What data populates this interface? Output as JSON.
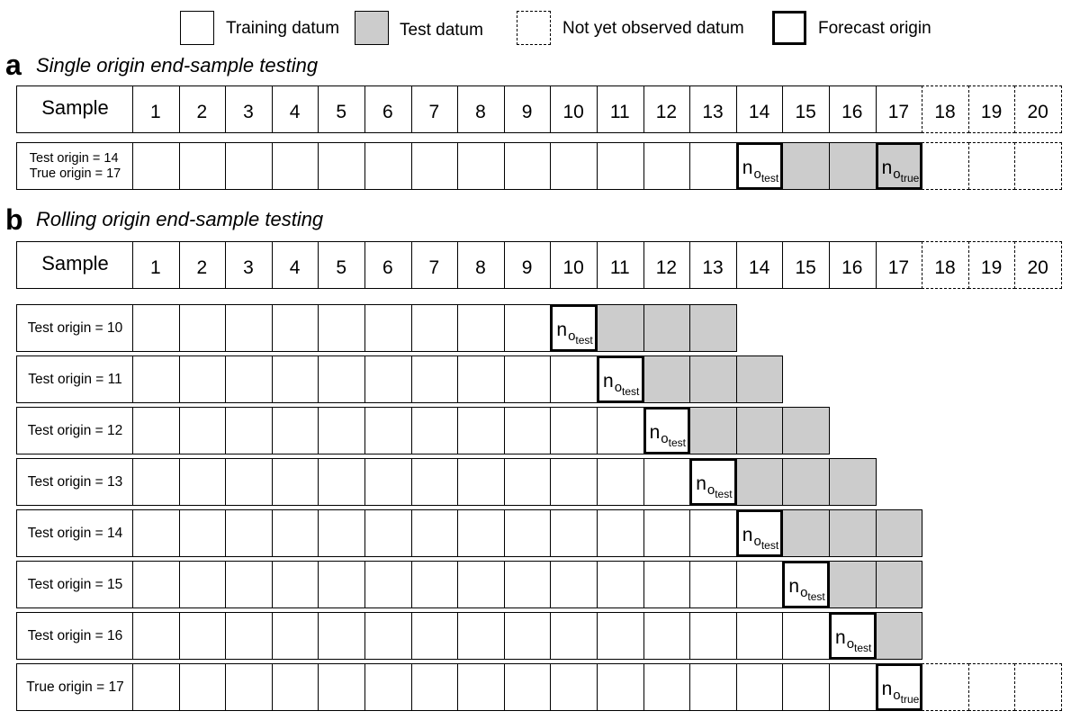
{
  "legend": {
    "training": "Training datum",
    "test": "Test datum",
    "future": "Not yet observed datum",
    "origin": "Forecast origin"
  },
  "colors": {
    "test_fill": "#cccccc",
    "border": "#000000",
    "background": "#ffffff"
  },
  "sample_numbers": [
    "1",
    "2",
    "3",
    "4",
    "5",
    "6",
    "7",
    "8",
    "9",
    "10",
    "11",
    "12",
    "13",
    "14",
    "15",
    "16",
    "17",
    "18",
    "19",
    "20"
  ],
  "observed_count": 17,
  "origin_symbol": {
    "base": "n",
    "o": "o",
    "test_sub": "test",
    "true_sub": "true"
  },
  "section_a": {
    "letter": "a",
    "title": "Single origin end-sample testing",
    "header_label": "Sample",
    "rows": [
      {
        "label_line1": "Test origin = 14",
        "label_line2": "True origin = 17",
        "origin": 14,
        "origin_sub": "test",
        "test_end": 17,
        "second_origin": 17,
        "second_origin_sub": "true",
        "show_future": true
      }
    ]
  },
  "section_b": {
    "letter": "b",
    "title": "Rolling origin end-sample testing",
    "header_label": "Sample",
    "rows": [
      {
        "label": "Test origin = 10",
        "origin": 10,
        "origin_sub": "test",
        "test_end": 13,
        "show_future": false
      },
      {
        "label": "Test origin = 11",
        "origin": 11,
        "origin_sub": "test",
        "test_end": 14,
        "show_future": false
      },
      {
        "label": "Test origin = 12",
        "origin": 12,
        "origin_sub": "test",
        "test_end": 15,
        "show_future": false
      },
      {
        "label": "Test origin = 13",
        "origin": 13,
        "origin_sub": "test",
        "test_end": 16,
        "show_future": false
      },
      {
        "label": "Test origin = 14",
        "origin": 14,
        "origin_sub": "test",
        "test_end": 17,
        "show_future": false
      },
      {
        "label": "Test origin = 15",
        "origin": 15,
        "origin_sub": "test",
        "test_end": 17,
        "show_future": false
      },
      {
        "label": "Test origin = 16",
        "origin": 16,
        "origin_sub": "test",
        "test_end": 17,
        "show_future": false
      },
      {
        "label": "True origin = 17",
        "origin": 17,
        "origin_sub": "true",
        "test_end": 17,
        "show_future": true
      }
    ]
  }
}
